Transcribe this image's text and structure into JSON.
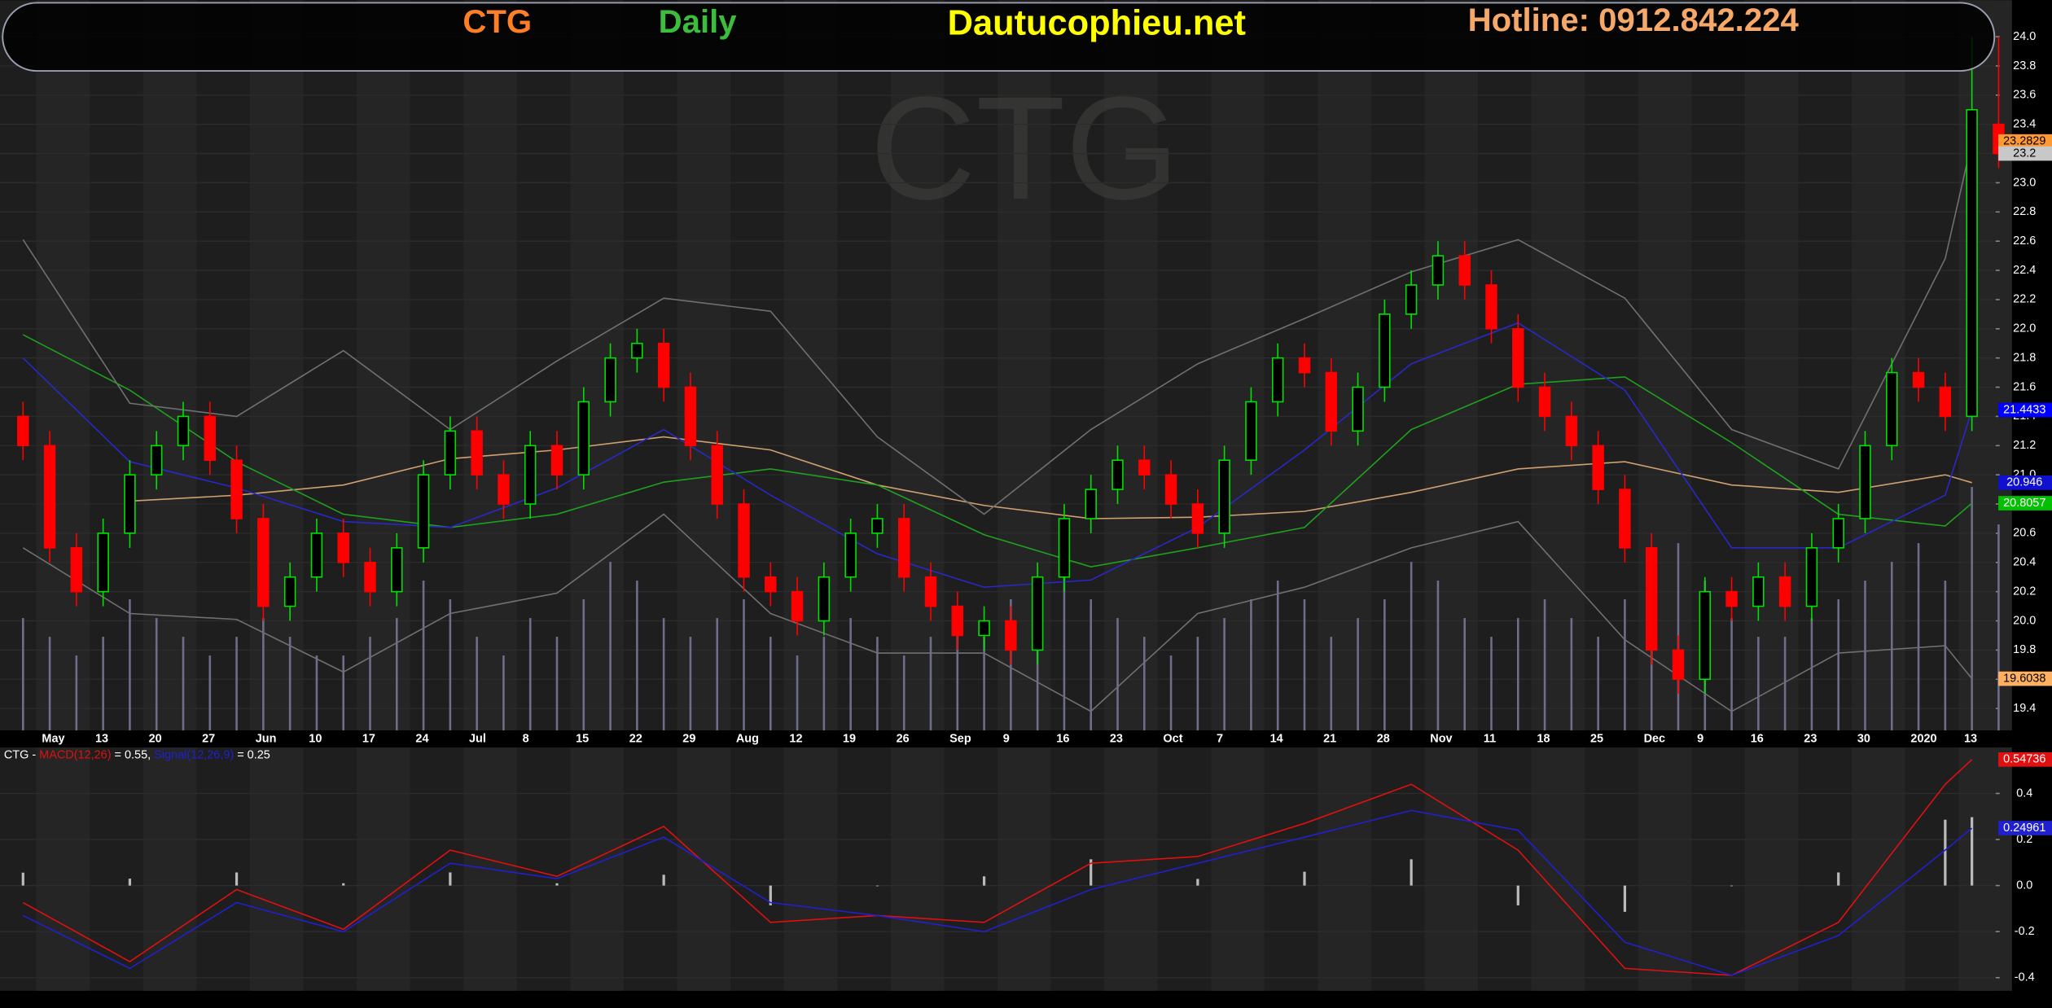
{
  "header": {
    "symbol": "CTG",
    "period": "Daily",
    "site": "Dautucophieu.net",
    "hotline": "Hotline: 0912.842.224"
  },
  "chart_data": [
    {
      "type": "candlestick",
      "categories": [
        null,
        "May",
        null,
        "13",
        null,
        "20",
        null,
        "27",
        null,
        "Jun",
        null,
        "10",
        null,
        "17",
        null,
        "24",
        null,
        "Jul",
        null,
        "8",
        null,
        "15",
        null,
        "22",
        null,
        "29",
        null,
        "Aug",
        null,
        "12",
        null,
        "19",
        null,
        "26",
        null,
        "Sep",
        null,
        "9",
        null,
        "16",
        null,
        "23",
        null,
        "Oct",
        null,
        "7",
        null,
        "14",
        null,
        "21",
        null,
        "28",
        null,
        "Nov",
        null,
        "11",
        null,
        "18",
        null,
        "25",
        null,
        "Dec",
        null,
        "9",
        null,
        "16",
        null,
        "23",
        null,
        "30",
        null,
        "2020",
        null,
        "13",
        null
      ],
      "open": [
        21.4,
        21.2,
        20.5,
        20.2,
        20.6,
        21.0,
        21.2,
        21.4,
        21.1,
        20.7,
        20.1,
        20.3,
        20.6,
        20.4,
        20.2,
        20.5,
        21.0,
        21.3,
        21.0,
        20.8,
        21.2,
        21.0,
        21.5,
        21.8,
        21.9,
        21.6,
        21.2,
        20.8,
        20.3,
        20.2,
        20.0,
        20.3,
        20.6,
        20.7,
        20.3,
        20.1,
        19.9,
        20.0,
        19.8,
        20.3,
        20.7,
        20.9,
        21.1,
        21.0,
        20.8,
        20.6,
        21.1,
        21.5,
        21.8,
        21.7,
        21.3,
        21.6,
        22.1,
        22.3,
        22.5,
        22.3,
        22.0,
        21.6,
        21.4,
        21.2,
        20.9,
        20.5,
        19.8,
        19.6,
        20.2,
        20.1,
        20.3,
        20.1,
        20.5,
        20.7,
        21.2,
        21.7,
        21.6,
        21.4,
        23.4
      ],
      "high": [
        21.5,
        21.3,
        20.6,
        20.7,
        21.1,
        21.3,
        21.5,
        21.5,
        21.2,
        20.8,
        20.4,
        20.7,
        20.7,
        20.5,
        20.6,
        21.1,
        21.4,
        21.4,
        21.1,
        21.3,
        21.3,
        21.6,
        21.9,
        22.0,
        22.0,
        21.7,
        21.3,
        20.9,
        20.4,
        20.3,
        20.4,
        20.7,
        20.8,
        20.8,
        20.4,
        20.2,
        20.1,
        20.1,
        20.4,
        20.8,
        21.0,
        21.2,
        21.2,
        21.1,
        20.9,
        21.2,
        21.6,
        21.9,
        21.9,
        21.8,
        21.7,
        22.2,
        22.4,
        22.6,
        22.6,
        22.4,
        22.1,
        21.7,
        21.5,
        21.3,
        21.0,
        20.6,
        19.9,
        20.3,
        20.3,
        20.4,
        20.4,
        20.6,
        20.8,
        21.3,
        21.8,
        21.8,
        21.7,
        24.0,
        24.0
      ],
      "low": [
        21.1,
        20.4,
        20.1,
        20.1,
        20.5,
        20.9,
        21.1,
        21.0,
        20.6,
        20.0,
        20.0,
        20.2,
        20.3,
        20.1,
        20.1,
        20.4,
        20.9,
        20.9,
        20.7,
        20.7,
        20.9,
        20.9,
        21.4,
        21.7,
        21.5,
        21.1,
        20.7,
        20.2,
        20.1,
        19.9,
        19.9,
        20.2,
        20.5,
        20.2,
        20.0,
        19.8,
        19.8,
        19.7,
        19.7,
        20.2,
        20.6,
        20.8,
        20.9,
        20.7,
        20.5,
        20.5,
        21.0,
        21.4,
        21.6,
        21.2,
        21.2,
        21.5,
        22.0,
        22.2,
        22.2,
        21.9,
        21.5,
        21.3,
        21.1,
        20.8,
        20.4,
        19.7,
        19.5,
        19.5,
        20.0,
        20.0,
        20.0,
        20.0,
        20.4,
        20.6,
        21.1,
        21.5,
        21.3,
        21.3,
        23.1
      ],
      "close": [
        21.2,
        20.5,
        20.2,
        20.6,
        21.0,
        21.2,
        21.4,
        21.1,
        20.7,
        20.1,
        20.3,
        20.6,
        20.4,
        20.2,
        20.5,
        21.0,
        21.3,
        21.0,
        20.8,
        21.2,
        21.0,
        21.5,
        21.8,
        21.9,
        21.6,
        21.2,
        20.8,
        20.3,
        20.2,
        20.0,
        20.3,
        20.6,
        20.7,
        20.3,
        20.1,
        19.9,
        20.0,
        19.8,
        20.3,
        20.7,
        20.9,
        21.1,
        21.0,
        20.8,
        20.6,
        21.1,
        21.5,
        21.8,
        21.7,
        21.3,
        21.6,
        22.1,
        22.3,
        22.5,
        22.3,
        22.0,
        21.6,
        21.4,
        21.2,
        20.9,
        20.5,
        19.8,
        19.6,
        20.2,
        20.1,
        20.3,
        20.1,
        20.5,
        20.7,
        21.2,
        21.7,
        21.6,
        21.4,
        23.5,
        23.2
      ],
      "volume": [
        6,
        5,
        4,
        5,
        7,
        6,
        5,
        4,
        5,
        6,
        5,
        4,
        4,
        5,
        6,
        8,
        7,
        5,
        4,
        6,
        5,
        7,
        9,
        8,
        6,
        5,
        6,
        7,
        5,
        4,
        5,
        6,
        5,
        4,
        5,
        6,
        5,
        7,
        8,
        9,
        7,
        6,
        5,
        4,
        5,
        6,
        7,
        8,
        7,
        5,
        6,
        7,
        9,
        8,
        6,
        5,
        6,
        7,
        6,
        5,
        7,
        9,
        10,
        8,
        6,
        5,
        5,
        6,
        7,
        8,
        9,
        10,
        8,
        13,
        11
      ],
      "up_color": "#00e000",
      "down_color": "#ff0000",
      "volume_color": "#6e6e8c",
      "close_label_color": "#c8c8c8",
      "lines": [
        {
          "color": "#d0a070",
          "label_color": "#1010d0",
          "x": [
            0,
            4,
            8,
            12,
            16,
            20,
            24,
            28,
            32,
            36,
            40,
            44,
            48,
            52,
            56,
            60,
            64,
            68,
            72,
            73
          ],
          "values": [
            null,
            20.82,
            20.86,
            20.93,
            21.11,
            21.17,
            21.26,
            21.17,
            20.93,
            20.79,
            20.7,
            20.71,
            20.75,
            20.88,
            21.04,
            21.09,
            20.93,
            20.88,
            21.0,
            20.946
          ]
        },
        {
          "color": "#1fa01f",
          "label_color": "#00c000",
          "x": [
            0,
            4,
            8,
            12,
            16,
            20,
            24,
            28,
            32,
            36,
            40,
            44,
            48,
            52,
            56,
            60,
            64,
            68,
            72,
            73
          ],
          "values": [
            21.96,
            21.58,
            21.09,
            20.73,
            20.64,
            20.73,
            20.95,
            21.04,
            20.93,
            20.59,
            20.37,
            20.5,
            20.64,
            21.31,
            21.62,
            21.67,
            21.22,
            20.73,
            20.65,
            20.8057
          ]
        },
        {
          "color": "#2828c8",
          "label_color": "#0000ff",
          "x": [
            0,
            4,
            8,
            12,
            16,
            20,
            24,
            28,
            32,
            36,
            40,
            44,
            48,
            52,
            56,
            60,
            64,
            68,
            72,
            73
          ],
          "values": [
            21.8,
            21.09,
            20.91,
            20.68,
            20.64,
            20.91,
            21.31,
            20.86,
            20.46,
            20.23,
            20.28,
            20.64,
            21.17,
            21.76,
            22.04,
            21.58,
            20.5,
            20.5,
            20.86,
            21.4433
          ]
        },
        {
          "color": "#707070",
          "label_color": "#ff9933",
          "x": [
            0,
            4,
            8,
            12,
            16,
            20,
            24,
            28,
            32,
            36,
            40,
            44,
            48,
            52,
            56,
            60,
            64,
            68,
            72,
            73
          ],
          "values": [
            22.61,
            21.49,
            21.4,
            21.85,
            21.31,
            21.78,
            22.21,
            22.12,
            21.26,
            20.73,
            21.31,
            21.76,
            22.07,
            22.39,
            22.61,
            22.21,
            21.31,
            21.04,
            22.48,
            23.2829
          ]
        },
        {
          "color": "#707070",
          "label_color": "#ffb060",
          "x": [
            0,
            4,
            8,
            12,
            16,
            20,
            24,
            28,
            32,
            36,
            40,
            44,
            48,
            52,
            56,
            60,
            64,
            68,
            72,
            73
          ],
          "values": [
            20.5,
            20.05,
            20.01,
            19.65,
            20.05,
            20.19,
            20.73,
            20.05,
            19.78,
            19.78,
            19.38,
            20.05,
            20.23,
            20.5,
            20.68,
            19.87,
            19.38,
            19.78,
            19.83,
            19.6038
          ]
        }
      ],
      "ylim": [
        19.25,
        24.25
      ],
      "yticks": [
        19.4,
        19.6,
        19.8,
        {
          "value": 20,
          "label": "20.0"
        },
        20.2,
        20.4,
        20.6,
        20.8,
        {
          "value": 21,
          "label": "21.0"
        },
        21.2,
        21.4,
        21.6,
        21.8,
        {
          "value": 22,
          "label": "22.0"
        },
        22.2,
        22.4,
        22.6,
        22.8,
        {
          "value": 23,
          "label": "23.0"
        },
        23.2,
        23.4,
        23.6,
        23.8,
        {
          "value": 24,
          "label": "24.0"
        }
      ],
      "grid": true
    },
    {
      "type": "macd",
      "legend_prefix": "CTG -",
      "series": [
        {
          "name": "MACD(12,26)",
          "summary": "= 0.55,",
          "color": "#e01010",
          "x": [
            0,
            4,
            8,
            12,
            16,
            20,
            24,
            28,
            32,
            36,
            40,
            44,
            48,
            52,
            56,
            60,
            64,
            68,
            72,
            73
          ],
          "values": [
            -0.074,
            -0.33,
            -0.017,
            -0.19,
            0.154,
            0.04,
            0.257,
            -0.16,
            -0.13,
            -0.16,
            0.097,
            0.126,
            0.27,
            0.44,
            0.154,
            -0.36,
            -0.39,
            -0.16,
            0.44,
            0.54736
          ]
        },
        {
          "name": "Signal(12,26,9)",
          "summary": "= 0.25",
          "color": "#2020d0",
          "x": [
            0,
            4,
            8,
            12,
            16,
            20,
            24,
            28,
            32,
            36,
            40,
            44,
            48,
            52,
            56,
            60,
            64,
            68,
            72,
            73
          ],
          "values": [
            -0.13,
            -0.36,
            -0.074,
            -0.2,
            0.097,
            0.03,
            0.21,
            -0.074,
            -0.13,
            -0.2,
            -0.017,
            0.097,
            0.21,
            0.326,
            0.24,
            -0.246,
            -0.39,
            -0.217,
            0.154,
            0.24961
          ]
        }
      ],
      "histogram": {
        "color": "#bbbbbb",
        "x": [
          0,
          4,
          8,
          12,
          16,
          20,
          24,
          28,
          32,
          36,
          40,
          44,
          48,
          52,
          56,
          60,
          64,
          68,
          72,
          73
        ],
        "values": [
          0.056,
          0.03,
          0.057,
          0.01,
          0.057,
          0.01,
          0.047,
          -0.086,
          0,
          0.04,
          0.114,
          0.029,
          0.06,
          0.114,
          -0.086,
          -0.114,
          0,
          0.057,
          0.286,
          0.297
        ]
      },
      "ylim": [
        -0.457,
        0.6
      ],
      "yticks": [
        -0.4,
        -0.2,
        {
          "value": 0,
          "label": "0.0"
        },
        0.2,
        0.4
      ],
      "grid": true
    }
  ]
}
